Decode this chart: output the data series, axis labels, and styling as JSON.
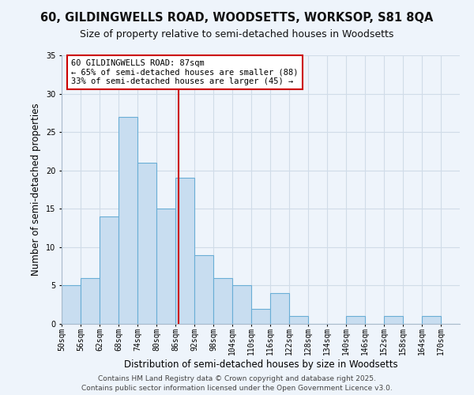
{
  "title_line1": "60, GILDINGWELLS ROAD, WOODSETTS, WORKSOP, S81 8QA",
  "title_line2": "Size of property relative to semi-detached houses in Woodsetts",
  "bar_labels": [
    "50sqm",
    "56sqm",
    "62sqm",
    "68sqm",
    "74sqm",
    "80sqm",
    "86sqm",
    "92sqm",
    "98sqm",
    "104sqm",
    "110sqm",
    "116sqm",
    "122sqm",
    "128sqm",
    "134sqm",
    "140sqm",
    "146sqm",
    "152sqm",
    "158sqm",
    "164sqm",
    "170sqm"
  ],
  "bar_values": [
    5,
    6,
    14,
    27,
    21,
    15,
    19,
    9,
    6,
    5,
    2,
    4,
    1,
    0,
    0,
    1,
    0,
    1,
    0,
    1,
    0
  ],
  "bar_color": "#c8ddf0",
  "bar_edge_color": "#6aaed6",
  "bin_width": 6,
  "bin_starts": [
    50,
    56,
    62,
    68,
    74,
    80,
    86,
    92,
    98,
    104,
    110,
    116,
    122,
    128,
    134,
    140,
    146,
    152,
    158,
    164,
    170
  ],
  "reference_line_x": 87,
  "reference_line_color": "#cc0000",
  "xlabel": "Distribution of semi-detached houses by size in Woodsetts",
  "ylabel": "Number of semi-detached properties",
  "ylim": [
    0,
    35
  ],
  "yticks": [
    0,
    5,
    10,
    15,
    20,
    25,
    30,
    35
  ],
  "annotation_title": "60 GILDINGWELLS ROAD: 87sqm",
  "annotation_line2": "← 65% of semi-detached houses are smaller (88)",
  "annotation_line3": "33% of semi-detached houses are larger (45) →",
  "annotation_box_color": "#ffffff",
  "annotation_box_edge": "#cc0000",
  "footer_line1": "Contains HM Land Registry data © Crown copyright and database right 2025.",
  "footer_line2": "Contains public sector information licensed under the Open Government Licence v3.0.",
  "background_color": "#eef4fb",
  "grid_color": "#d0dce8",
  "title_fontsize": 10.5,
  "subtitle_fontsize": 9,
  "axis_label_fontsize": 8.5,
  "tick_fontsize": 7,
  "annotation_fontsize": 7.5,
  "footer_fontsize": 6.5
}
